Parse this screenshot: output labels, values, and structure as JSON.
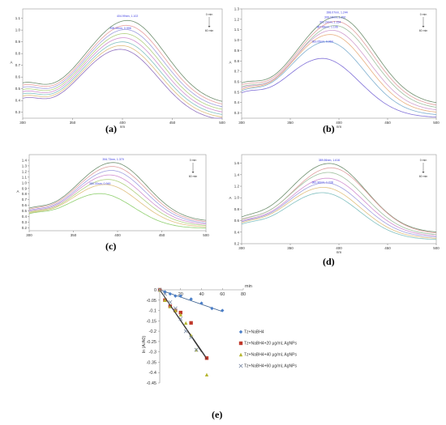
{
  "captions": [
    "(a)",
    "(b)",
    "(c)",
    "(d)",
    "(e)"
  ],
  "chart_data": [
    {
      "type": "line",
      "panel": "(a)",
      "xlabel": "nm",
      "ylabel": "A",
      "xlim": [
        300,
        500
      ],
      "ylim": [
        0.25,
        1.18
      ],
      "x_ticks": [
        300,
        350,
        400,
        450,
        500
      ],
      "y_ticks": [
        0.3,
        0.4,
        0.5,
        0.6,
        0.7,
        0.8,
        0.9,
        1.0,
        1.1
      ],
      "top_note": "0 min",
      "bottom_note": "60 min",
      "annotations": [
        {
          "text": "404.99nm, 1.102",
          "x": 405,
          "y": 1.102
        },
        {
          "text": "398.06nm, 0.996",
          "x": 398,
          "y": 0.996
        }
      ],
      "series": [
        {
          "peak_x": 405,
          "peak_y": 1.102,
          "color": "#6f8f6f"
        },
        {
          "peak_x": 404,
          "peak_y": 1.08,
          "color": "#e8a0a0"
        },
        {
          "peak_x": 403,
          "peak_y": 1.065,
          "color": "#a0a0e0"
        },
        {
          "peak_x": 402,
          "peak_y": 1.05,
          "color": "#b0d080"
        },
        {
          "peak_x": 401,
          "peak_y": 1.035,
          "color": "#d090d0"
        },
        {
          "peak_x": 400,
          "peak_y": 1.02,
          "color": "#80c0c0"
        },
        {
          "peak_x": 399,
          "peak_y": 1.008,
          "color": "#e0c080"
        },
        {
          "peak_x": 398,
          "peak_y": 0.996,
          "color": "#9070c0"
        }
      ]
    },
    {
      "type": "line",
      "panel": "(b)",
      "xlabel": "nm",
      "ylabel": "A",
      "xlim": [
        300,
        500
      ],
      "ylim": [
        0.25,
        1.3
      ],
      "x_ticks": [
        300,
        350,
        400,
        450,
        500
      ],
      "y_ticks": [
        0.3,
        0.4,
        0.5,
        0.6,
        0.7,
        0.8,
        0.9,
        1.0,
        1.1,
        1.2,
        1.3
      ],
      "top_note": "0 min",
      "bottom_note": "60 min",
      "annotations": [
        {
          "text": "398.07nm, 1.244",
          "x": 398,
          "y": 1.244
        },
        {
          "text": "396.16nm, 1.200",
          "x": 396,
          "y": 1.2
        },
        {
          "text": "391.24nm, 1.154",
          "x": 391,
          "y": 1.154
        },
        {
          "text": "387.88nm, 1.106",
          "x": 388,
          "y": 1.106
        },
        {
          "text": "383.05nm, 0.964",
          "x": 383,
          "y": 0.964
        }
      ],
      "series": [
        {
          "peak_x": 398,
          "peak_y": 1.244,
          "color": "#6f8f6f"
        },
        {
          "peak_x": 397,
          "peak_y": 1.22,
          "color": "#e0a0a0"
        },
        {
          "peak_x": 396,
          "peak_y": 1.2,
          "color": "#a0c0a0"
        },
        {
          "peak_x": 393,
          "peak_y": 1.175,
          "color": "#d0a0d0"
        },
        {
          "peak_x": 391,
          "peak_y": 1.154,
          "color": "#e8b080"
        },
        {
          "peak_x": 388,
          "peak_y": 1.106,
          "color": "#80b0d0"
        },
        {
          "peak_x": 383,
          "peak_y": 0.964,
          "color": "#8070d8"
        }
      ]
    },
    {
      "type": "line",
      "panel": "(c)",
      "xlabel": "",
      "ylabel": "A",
      "xlim": [
        300,
        500
      ],
      "ylim": [
        0.15,
        1.5
      ],
      "x_ticks": [
        300,
        350,
        400,
        450,
        500
      ],
      "y_ticks": [
        0.2,
        0.3,
        0.4,
        0.5,
        0.6,
        0.7,
        0.8,
        0.9,
        1.0,
        1.1,
        1.2,
        1.3,
        1.4
      ],
      "top_note": "0 min",
      "bottom_note": "60 min",
      "annotations": [
        {
          "text": "394.73nm, 1.379",
          "x": 395,
          "y": 1.379
        },
        {
          "text": "380.33nm, 0.949",
          "x": 380,
          "y": 0.949
        }
      ],
      "series": [
        {
          "peak_x": 395,
          "peak_y": 1.379,
          "color": "#6f8f6f"
        },
        {
          "peak_x": 394,
          "peak_y": 1.33,
          "color": "#e0a0a0"
        },
        {
          "peak_x": 393,
          "peak_y": 1.28,
          "color": "#a0a0e0"
        },
        {
          "peak_x": 391,
          "peak_y": 1.22,
          "color": "#d090d0"
        },
        {
          "peak_x": 389,
          "peak_y": 1.16,
          "color": "#b0d080"
        },
        {
          "peak_x": 386,
          "peak_y": 1.09,
          "color": "#e0c080"
        },
        {
          "peak_x": 380,
          "peak_y": 0.949,
          "color": "#90d070"
        }
      ]
    },
    {
      "type": "line",
      "panel": "(d)",
      "xlabel": "nm",
      "ylabel": "A",
      "xlim": [
        300,
        500
      ],
      "ylim": [
        0.2,
        1.75
      ],
      "x_ticks": [
        300,
        350,
        400,
        450,
        500
      ],
      "y_ticks": [
        0.2,
        0.4,
        0.6,
        0.8,
        1.0,
        1.2,
        1.4,
        1.6
      ],
      "top_note": "0 min",
      "bottom_note": "60 min",
      "annotations": [
        {
          "text": "389.86nm, 1.616",
          "x": 390,
          "y": 1.616
        },
        {
          "text": "382.90nm, 1.228",
          "x": 383,
          "y": 1.228
        }
      ],
      "series": [
        {
          "peak_x": 390,
          "peak_y": 1.616,
          "color": "#6f8f6f"
        },
        {
          "peak_x": 392,
          "peak_y": 1.56,
          "color": "#e0a0a0"
        },
        {
          "peak_x": 389,
          "peak_y": 1.5,
          "color": "#a0c0a0"
        },
        {
          "peak_x": 388,
          "peak_y": 1.42,
          "color": "#d090d0"
        },
        {
          "peak_x": 386,
          "peak_y": 1.36,
          "color": "#a0a0e0"
        },
        {
          "peak_x": 384,
          "peak_y": 1.3,
          "color": "#e0c080"
        },
        {
          "peak_x": 383,
          "peak_y": 1.228,
          "color": "#80c0c0"
        }
      ]
    },
    {
      "type": "scatter",
      "panel": "(e)",
      "xlabel": "min",
      "ylabel": "ln (A/A0)",
      "xlim": [
        0,
        80
      ],
      "ylim": [
        -0.45,
        0
      ],
      "x_ticks": [
        20,
        40,
        60,
        80
      ],
      "y_ticks": [
        0,
        -0.05,
        -0.1,
        -0.15,
        -0.2,
        -0.25,
        -0.3,
        -0.35,
        -0.4,
        -0.45
      ],
      "legend_position": "right",
      "series": [
        {
          "name": "Tz+NaBH4",
          "color": "#4a7ec8",
          "marker": "diamond",
          "x": [
            0,
            5,
            10,
            15,
            20,
            30,
            40,
            50,
            60
          ],
          "y": [
            0,
            -0.01,
            -0.02,
            -0.03,
            -0.03,
            -0.045,
            -0.065,
            -0.09,
            -0.1
          ],
          "fit": [
            [
              0,
              0
            ],
            [
              60,
              -0.105
            ]
          ]
        },
        {
          "name": "Tz+NaBH4+20 µg/mL AgNPs",
          "color": "#c0392b",
          "marker": "square",
          "x": [
            0,
            5,
            10,
            15,
            20,
            30,
            45
          ],
          "y": [
            0,
            -0.05,
            -0.08,
            -0.1,
            -0.11,
            -0.16,
            -0.33
          ],
          "fit": [
            [
              0,
              0
            ],
            [
              45,
              -0.33
            ]
          ]
        },
        {
          "name": "Tz+NaBH4+40 µg/mL AgNPs",
          "color": "#b5b52e",
          "marker": "triangle",
          "x": [
            0,
            5,
            10,
            15,
            20,
            25,
            30,
            35,
            45
          ],
          "y": [
            0,
            -0.05,
            -0.08,
            -0.1,
            -0.12,
            -0.16,
            -0.22,
            -0.29,
            -0.41
          ],
          "fit": [
            [
              0,
              0
            ],
            [
              45,
              -0.335
            ]
          ]
        },
        {
          "name": "Tz+NaBH4+60 µg/mL AgNPs",
          "color": "#7f8fa8",
          "marker": "cross",
          "x": [
            0,
            5,
            10,
            15,
            20,
            25,
            30,
            35
          ],
          "y": [
            0,
            -0.02,
            -0.06,
            -0.09,
            -0.14,
            -0.2,
            -0.23,
            -0.29
          ],
          "fit": [
            [
              0,
              0
            ],
            [
              40,
              -0.3
            ]
          ]
        }
      ]
    }
  ]
}
